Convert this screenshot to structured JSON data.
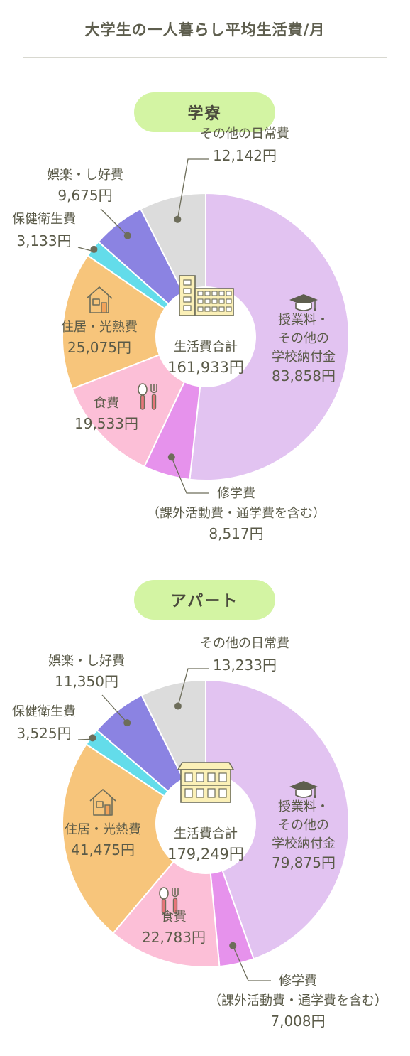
{
  "title": "大学生の一人暮らし平均生活費/月",
  "chart_data": [
    {
      "type": "pie",
      "title": "学寮",
      "center_label": "生活費合計",
      "total": "161,933円",
      "slices": [
        {
          "label": [
            "授業料・",
            "その他の",
            "学校納付金"
          ],
          "value": 83858,
          "value_text": "83,858円",
          "color": "#e2c3f1",
          "icon": "graduation-cap-icon"
        },
        {
          "label": [
            "修学費",
            "（課外活動費・通学費を含む）"
          ],
          "value": 8517,
          "value_text": "8,517円",
          "color": "#e692ec"
        },
        {
          "label": [
            "食費"
          ],
          "value": 19533,
          "value_text": "19,533円",
          "color": "#fcbfd7",
          "icon": "spoon-fork-icon"
        },
        {
          "label": [
            "住居・光熱費"
          ],
          "value": 25075,
          "value_text": "25,075円",
          "color": "#f7c57b",
          "icon": "house-icon"
        },
        {
          "label": [
            "保健衛生費"
          ],
          "value": 3133,
          "value_text": "3,133円",
          "color": "#63dcea"
        },
        {
          "label": [
            "娯楽・し好費"
          ],
          "value": 9675,
          "value_text": "9,675円",
          "color": "#8b83e2"
        },
        {
          "label": [
            "その他の日常費"
          ],
          "value": 12142,
          "value_text": "12,142円",
          "color": "#dcdcdc"
        }
      ],
      "center_icon": "dormitory-icon"
    },
    {
      "type": "pie",
      "title": "アパート",
      "center_label": "生活費合計",
      "total": "179,249円",
      "slices": [
        {
          "label": [
            "授業料・",
            "その他の",
            "学校納付金"
          ],
          "value": 79875,
          "value_text": "79,875円",
          "color": "#e2c3f1",
          "icon": "graduation-cap-icon"
        },
        {
          "label": [
            "修学費",
            "（課外活動費・通学費を含む）"
          ],
          "value": 7008,
          "value_text": "7,008円",
          "color": "#e692ec"
        },
        {
          "label": [
            "食費"
          ],
          "value": 22783,
          "value_text": "22,783円",
          "color": "#fcbfd7",
          "icon": "spoon-fork-icon"
        },
        {
          "label": [
            "住居・光熱費"
          ],
          "value": 41475,
          "value_text": "41,475円",
          "color": "#f7c57b",
          "icon": "house-icon"
        },
        {
          "label": [
            "保健衛生費"
          ],
          "value": 3525,
          "value_text": "3,525円",
          "color": "#63dcea"
        },
        {
          "label": [
            "娯楽・し好費"
          ],
          "value": 11350,
          "value_text": "11,350円",
          "color": "#8b83e2"
        },
        {
          "label": [
            "その他の日常費"
          ],
          "value": 13233,
          "value_text": "13,233円",
          "color": "#dcdcdc"
        }
      ],
      "center_icon": "apartment-icon"
    }
  ]
}
